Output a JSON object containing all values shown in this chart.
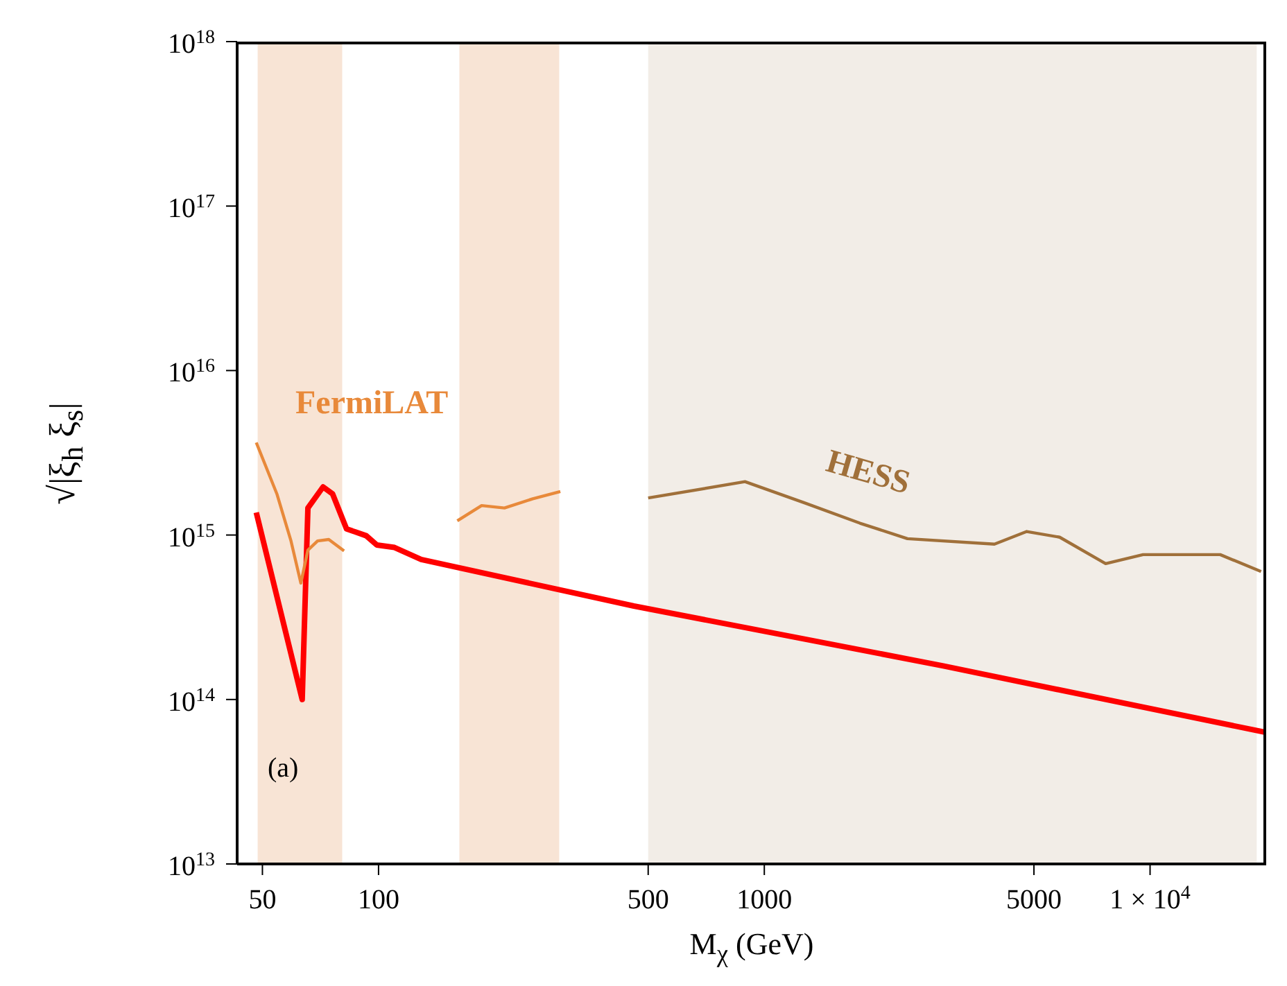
{
  "chart_data": {
    "type": "line",
    "xlabel": "M$_{χ}$ (GeV)",
    "ylabel": "√|ξ$_{h}$ ξ$_{s}$|",
    "log": "xy",
    "xlim": [
      43,
      20000
    ],
    "xticks": [
      50,
      100,
      500,
      1000,
      5000,
      {
        "value": 10000,
        "label": "1 × 10$^{4}$"
      }
    ],
    "ylim": [
      10000000000000.0,
      1e+18
    ],
    "yticks": [
      {
        "value": 10000000000000.0,
        "label": "10$^{13}$"
      },
      {
        "value": 100000000000000.0,
        "label": "10$^{14}$"
      },
      {
        "value": 1000000000000000.0,
        "label": "10$^{15}$"
      },
      {
        "value": 1e+16,
        "label": "10$^{16}$"
      },
      {
        "value": 1e+17,
        "label": "10$^{17}$"
      },
      {
        "value": 1e+18,
        "label": "10$^{18}$"
      }
    ],
    "marker": "none",
    "line_style": "solid",
    "annotations": [
      "(a)"
    ],
    "bands": [
      {
        "axis": "x",
        "from": 48.6,
        "to": 80.5,
        "color": "#f8e4d5"
      },
      {
        "axis": "x",
        "from": 162,
        "to": 294,
        "color": "#f8e4d5"
      },
      {
        "axis": "x",
        "from": 500,
        "to": 18900,
        "color": "#f2ede7"
      }
    ],
    "series": [
      {
        "color": "#ff0000",
        "x": [
          48.2,
          63.4,
          65.6,
          71.8,
          76,
          82.6,
          92.9,
          99,
          110,
          129,
          459,
          2910,
          20000
        ],
        "values": [
          1370000000000000.0,
          100000000000000.0,
          1460000000000000.0,
          1960000000000000.0,
          1780000000000000.0,
          1090000000000000.0,
          990000000000000.0,
          870000000000000.0,
          840000000000000.0,
          710000000000000.0,
          370000000000000.0,
          160000000000000.0,
          63000000000000.0
        ]
      },
      {
        "name": "FermiLAT",
        "color": "#e8893a",
        "x": [
          48.2,
          54.5,
          59.3,
          62.9,
          65.6,
          69.5,
          74.3,
          81.4,
          120,
          160,
          185,
          212,
          251,
          296
        ],
        "values": [
          3650000000000000.0,
          1780000000000000.0,
          920000000000000.0,
          510000000000000.0,
          810000000000000.0,
          920000000000000.0,
          940000000000000.0,
          800000000000000.0,
          null,
          1220000000000000.0,
          1510000000000000.0,
          1460000000000000.0,
          1660000000000000.0,
          1840000000000000.0
        ]
      },
      {
        "name": "HESS",
        "color": "#a0703a",
        "x": [
          500,
          891,
          1270,
          1770,
          2350,
          3950,
          4790,
          5830,
          7670,
          9590,
          15200,
          19400
        ],
        "values": [
          1680000000000000.0,
          2110000000000000.0,
          1570000000000000.0,
          1180000000000000.0,
          950000000000000.0,
          880000000000000.0,
          1050000000000000.0,
          970000000000000.0,
          670000000000000.0,
          760000000000000.0,
          760000000000000.0,
          600000000000000.0
        ]
      }
    ]
  }
}
